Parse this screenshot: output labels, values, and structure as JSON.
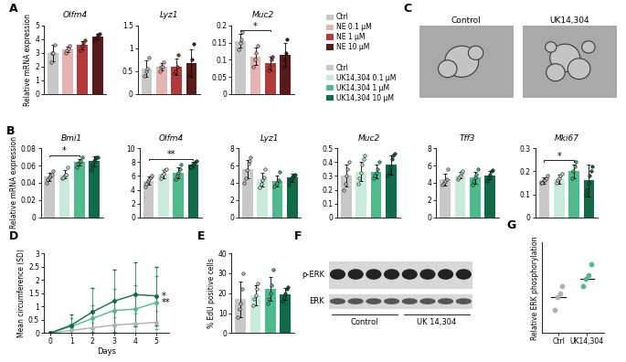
{
  "chart_data": [
    {
      "panel": "A",
      "type": "bar",
      "title": "Olfm4",
      "y_label": "Relative mRNA expression",
      "categories": [
        "Ctrl",
        "NE 0.1 µM",
        "NE 1 µM",
        "NE 10 µM"
      ],
      "colors": [
        "#c8c8c8",
        "#e6b3b3",
        "#b23a3a",
        "#5a1a1a"
      ],
      "values": [
        2.98,
        3.25,
        3.58,
        4.18
      ],
      "errors": [
        0.6,
        0.2,
        0.3,
        0.2
      ],
      "points": [
        [
          2.3,
          3.0,
          3.0,
          3.6
        ],
        [
          3.0,
          3.2,
          3.3,
          3.5
        ],
        [
          3.2,
          3.5,
          3.7,
          3.9
        ],
        [
          3.9,
          4.1,
          4.3,
          4.4
        ]
      ],
      "ylim": [
        0,
        5
      ],
      "yticks": [
        0,
        1,
        2,
        3,
        4,
        5
      ],
      "tick_labels": "y"
    },
    {
      "type": "bar",
      "title": "Lyz1",
      "categories": [
        "Ctrl",
        "NE 0.1 µM",
        "NE 1 µM",
        "NE 10 µM"
      ],
      "colors": [
        "#c8c8c8",
        "#e6b3b3",
        "#b23a3a",
        "#5a1a1a"
      ],
      "values": [
        0.56,
        0.6,
        0.6,
        0.67
      ],
      "errors": [
        0.18,
        0.08,
        0.18,
        0.3
      ],
      "points": [
        [
          0.4,
          0.5,
          0.55,
          0.8
        ],
        [
          0.5,
          0.6,
          0.6,
          0.7
        ],
        [
          0.45,
          0.5,
          0.6,
          0.85
        ],
        [
          0.4,
          0.45,
          0.75,
          1.1
        ]
      ],
      "ylim": [
        0,
        1.5
      ],
      "yticks": [
        0,
        0.5,
        1,
        1.5
      ],
      "tick_labels": "y"
    },
    {
      "type": "bar",
      "title": "Muc2",
      "categories": [
        "Ctrl",
        "NE 0.1 µM",
        "NE 1 µM",
        "NE 10 µM"
      ],
      "colors": [
        "#c8c8c8",
        "#e6b3b3",
        "#b23a3a",
        "#5a1a1a"
      ],
      "values": [
        0.155,
        0.11,
        0.09,
        0.115
      ],
      "errors": [
        0.02,
        0.025,
        0.02,
        0.035
      ],
      "points": [
        [
          0.13,
          0.15,
          0.16,
          0.18
        ],
        [
          0.08,
          0.1,
          0.12,
          0.14
        ],
        [
          0.07,
          0.08,
          0.1,
          0.11
        ],
        [
          0.08,
          0.1,
          0.12,
          0.16
        ]
      ],
      "ylim": [
        0,
        0.2
      ],
      "yticks": [
        0,
        0.05,
        0.1,
        0.15,
        0.2
      ],
      "tick_labels": "y",
      "significance": [
        {
          "from": 0,
          "to": 2,
          "text": "*"
        }
      ]
    },
    {
      "panel": "B",
      "type": "bar",
      "title": "Bmi1",
      "y_label": "Relative mRNA expression",
      "categories": [
        "Ctrl",
        "UK14,304 0.1 µM",
        "UK14,304 1 µM",
        "UK14,304 10 µM"
      ],
      "colors": [
        "#c8c8c8",
        "#c8ecd9",
        "#4dbb8c",
        "#0f6b48"
      ],
      "values": [
        0.047,
        0.05,
        0.064,
        0.065
      ],
      "errors": [
        0.005,
        0.005,
        0.004,
        0.006
      ],
      "points": [
        [
          0.04,
          0.044,
          0.046,
          0.048,
          0.05,
          0.054
        ],
        [
          0.045,
          0.046,
          0.048,
          0.05,
          0.058
        ],
        [
          0.058,
          0.062,
          0.064,
          0.066,
          0.07
        ],
        [
          0.055,
          0.06,
          0.066,
          0.068,
          0.07,
          0.07
        ]
      ],
      "ylim": [
        0,
        0.08
      ],
      "yticks": [
        0,
        0.02,
        0.04,
        0.06,
        0.08
      ],
      "tick_labels": "y",
      "significance": [
        {
          "from": 0,
          "to": 2,
          "text": "*"
        }
      ]
    },
    {
      "type": "bar",
      "title": "Olfm4",
      "categories": [
        "Ctrl",
        "UK14,304 0.1 µM",
        "UK14,304 1 µM",
        "UK14,304 10 µM"
      ],
      "colors": [
        "#c8c8c8",
        "#c8ecd9",
        "#4dbb8c",
        "#0f6b48"
      ],
      "values": [
        5.3,
        6.3,
        6.5,
        7.6
      ],
      "errors": [
        0.6,
        0.6,
        0.8,
        0.4
      ],
      "points": [
        [
          4.5,
          4.8,
          5.2,
          5.5,
          5.8,
          6.0
        ],
        [
          5.6,
          6.0,
          6.3,
          6.8,
          7.0
        ],
        [
          5.5,
          6.0,
          6.4,
          7.0,
          7.6
        ],
        [
          7.2,
          7.3,
          7.6,
          7.8,
          8.0,
          8.2
        ]
      ],
      "ylim": [
        0,
        10
      ],
      "yticks": [
        0,
        2,
        4,
        6,
        8,
        10
      ],
      "tick_labels": "y",
      "significance": [
        {
          "from": 0,
          "to": 3,
          "text": "**"
        }
      ]
    },
    {
      "type": "bar",
      "title": "Lyz1",
      "categories": [
        "Ctrl",
        "UK14,304 0.1 µM",
        "UK14,304 1 µM",
        "UK14,304 10 µM"
      ],
      "colors": [
        "#c8c8c8",
        "#c8ecd9",
        "#4dbb8c",
        "#0f6b48"
      ],
      "values": [
        5.6,
        4.4,
        4.2,
        4.6
      ],
      "errors": [
        1.1,
        0.8,
        0.6,
        0.5
      ],
      "points": [
        [
          4.0,
          4.5,
          5.5,
          6.2,
          6.5,
          7.0
        ],
        [
          3.5,
          3.9,
          4.3,
          4.6,
          5.6
        ],
        [
          3.6,
          3.8,
          4.0,
          4.3,
          5.3
        ],
        [
          3.8,
          4.3,
          4.5,
          4.7,
          4.9,
          5.0
        ]
      ],
      "ylim": [
        0,
        8
      ],
      "yticks": [
        0,
        2,
        4,
        6,
        8
      ],
      "tick_labels": "y"
    },
    {
      "type": "bar",
      "title": "Muc2",
      "categories": [
        "Ctrl",
        "UK14,304 0.1 µM",
        "UK14,304 1 µM",
        "UK14,304 10 µM"
      ],
      "colors": [
        "#c8c8c8",
        "#c8ecd9",
        "#4dbb8c",
        "#0f6b48"
      ],
      "values": [
        0.3,
        0.33,
        0.33,
        0.38
      ],
      "errors": [
        0.08,
        0.07,
        0.05,
        0.07
      ],
      "points": [
        [
          0.2,
          0.24,
          0.3,
          0.35,
          0.4
        ],
        [
          0.24,
          0.28,
          0.32,
          0.38,
          0.42,
          0.45
        ],
        [
          0.28,
          0.3,
          0.32,
          0.35,
          0.4
        ],
        [
          0.3,
          0.33,
          0.36,
          0.42,
          0.45,
          0.46
        ]
      ],
      "ylim": [
        0,
        0.5
      ],
      "yticks": [
        0,
        0.1,
        0.2,
        0.3,
        0.4,
        0.5
      ],
      "tick_labels": "y"
    },
    {
      "type": "bar",
      "title": "Tff3",
      "categories": [
        "Ctrl",
        "UK14,304 0.1 µM",
        "UK14,304 1 µM",
        "UK14,304 10 µM"
      ],
      "colors": [
        "#c8c8c8",
        "#c8ecd9",
        "#4dbb8c",
        "#0f6b48"
      ],
      "values": [
        4.4,
        4.9,
        4.6,
        4.9
      ],
      "errors": [
        0.7,
        0.4,
        0.7,
        0.5
      ],
      "points": [
        [
          3.8,
          4.0,
          4.2,
          4.4,
          5.6
        ],
        [
          4.4,
          4.6,
          4.9,
          5.2,
          5.4
        ],
        [
          3.8,
          4.2,
          4.6,
          5.0,
          5.6
        ],
        [
          4.2,
          4.6,
          5.0,
          5.4,
          5.5
        ]
      ],
      "ylim": [
        0,
        8
      ],
      "yticks": [
        0,
        2,
        4,
        6,
        8
      ],
      "tick_labels": "y"
    },
    {
      "type": "bar",
      "title": "Mki67",
      "categories": [
        "Ctrl",
        "UK14,304 0.1 µM",
        "UK14,304 1 µM",
        "UK14,304 10 µM"
      ],
      "colors": [
        "#c8c8c8",
        "#c8ecd9",
        "#4dbb8c",
        "#0f6b48"
      ],
      "values": [
        0.16,
        0.165,
        0.2,
        0.16
      ],
      "errors": [
        0.015,
        0.02,
        0.03,
        0.07
      ],
      "points": [
        [
          0.15,
          0.15,
          0.16,
          0.16,
          0.17,
          0.18
        ],
        [
          0.15,
          0.16,
          0.17,
          0.18,
          0.19
        ],
        [
          0.17,
          0.2,
          0.22,
          0.24
        ],
        [
          0.1,
          0.12,
          0.15,
          0.18,
          0.2,
          0.22
        ]
      ],
      "ylim": [
        0,
        0.3
      ],
      "yticks": [
        0,
        0.1,
        0.2,
        0.3
      ],
      "tick_labels": "y",
      "significance": [
        {
          "from": 0,
          "to": 2,
          "text": "*"
        }
      ]
    },
    {
      "panel": "D",
      "type": "line",
      "x_label": "Days",
      "y_label": "Mean circumference (SD)",
      "marker": "o",
      "x": [
        0,
        1,
        2,
        3,
        4,
        5
      ],
      "series": [
        {
          "color": "#b0b0b0",
          "values": [
            0,
            0.1,
            0.2,
            0.3,
            0.35,
            0.4
          ],
          "errors": [
            0,
            0.1,
            0.2,
            0.3,
            0.4,
            0.45
          ]
        },
        {
          "color": "#4dbb8c",
          "values": [
            0,
            0.25,
            0.55,
            0.85,
            0.9,
            1.15
          ],
          "errors": [
            0,
            0.3,
            0.5,
            0.8,
            0.9,
            1.0
          ],
          "annotation": "**"
        },
        {
          "color": "#0f6b48",
          "values": [
            0,
            0.3,
            0.8,
            1.2,
            1.45,
            1.4
          ],
          "errors": [
            0,
            0.4,
            0.9,
            1.2,
            1.2,
            1.1
          ],
          "annotation": "*"
        }
      ],
      "xlim": [
        -0.3,
        5.6
      ],
      "xticks": [
        0,
        1,
        2,
        3,
        4,
        5
      ],
      "ylim": [
        0,
        3
      ],
      "yticks": [
        0,
        0.5,
        1,
        1.5,
        2,
        2.5,
        3
      ]
    },
    {
      "panel": "E",
      "type": "bar",
      "y_label": "% EdU positive cells",
      "categories": [
        "Ctrl",
        "UK14,304 0.1 µM",
        "UK14,304 1 µM",
        "UK14,304 10 µM"
      ],
      "colors": [
        "#c8c8c8",
        "#c8ecd9",
        "#4dbb8c",
        "#0f6b48"
      ],
      "values": [
        17,
        19,
        22,
        19.5
      ],
      "errors": [
        9,
        5,
        6,
        3
      ],
      "points": [
        [
          8,
          12,
          15,
          22,
          30
        ],
        [
          14,
          17,
          19,
          22,
          25
        ],
        [
          15,
          17,
          20,
          24,
          32
        ],
        [
          16,
          18,
          20,
          22,
          23
        ]
      ],
      "ylim": [
        0,
        40
      ],
      "yticks": [
        0,
        10,
        20,
        30,
        40
      ],
      "tick_labels": "y"
    },
    {
      "panel": "G",
      "type": "scatter",
      "y_label": "Relative ERK phosphorylation",
      "categories": [
        "Ctrl",
        "UK14,304"
      ],
      "colors": [
        "#b0b0b0",
        "#4dbb8c"
      ],
      "values": [
        0.6,
        0.7
      ],
      "points": [
        [
          0.53,
          0.6,
          0.62,
          0.66
        ],
        [
          0.66,
          0.7,
          0.72,
          0.78
        ]
      ],
      "ylim": [
        0.4,
        0.9
      ],
      "tick_labels": "x"
    }
  ],
  "legends": [
    {
      "entries": [
        "Ctrl",
        "NE 0.1 µM",
        "NE 1 µM",
        "NE 10 µM"
      ],
      "colors": [
        "#c8c8c8",
        "#e6b3b3",
        "#b23a3a",
        "#5a1a1a"
      ]
    },
    {
      "entries": [
        "Ctrl",
        "UK14,304 0.1 µM",
        "UK14,304 1 µM",
        "UK14,304 10 µM"
      ],
      "colors": [
        "#c8c8c8",
        "#c8ecd9",
        "#4dbb8c",
        "#0f6b48"
      ]
    }
  ],
  "images": [
    {
      "panel": "C",
      "titles": [
        "Control",
        "UK14,304"
      ]
    },
    {
      "panel": "F",
      "bands": [
        "p-ERK",
        "ERK"
      ],
      "groups": [
        "Control",
        "UK 14,304"
      ]
    }
  ]
}
